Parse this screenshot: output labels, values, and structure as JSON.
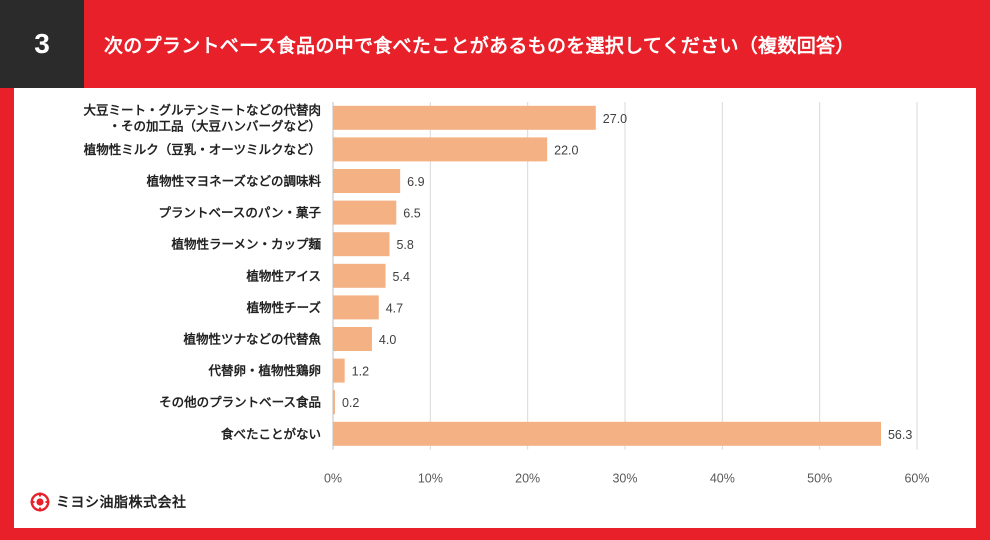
{
  "header": {
    "number": "3",
    "title": "次のプラントベース食品の中で食べたことがあるものを選択してください（複数回答）"
  },
  "colors": {
    "accent": "#e8202a",
    "dark": "#2b2b2b",
    "bar": "#f4b183"
  },
  "logo": {
    "text": "ミヨシ油脂株式会社",
    "icon": "miyoshi-logo-icon"
  },
  "chart_data": {
    "type": "bar",
    "orientation": "horizontal",
    "categories": [
      [
        "大豆ミート・グルテンミートなどの代替肉",
        "・その加工品（大豆ハンバーグなど）"
      ],
      [
        "植物性ミルク（豆乳・オーツミルクなど）"
      ],
      [
        "植物性マヨネーズなどの調味料"
      ],
      [
        "プラントベースのパン・菓子"
      ],
      [
        "植物性ラーメン・カップ麺"
      ],
      [
        "植物性アイス"
      ],
      [
        "植物性チーズ"
      ],
      [
        "植物性ツナなどの代替魚"
      ],
      [
        "代替卵・植物性鶏卵"
      ],
      [
        "その他のプラントベース食品"
      ],
      [
        "食べたことがない"
      ]
    ],
    "values": [
      27.0,
      22.0,
      6.9,
      6.5,
      5.8,
      5.4,
      4.7,
      4.0,
      1.2,
      0.2,
      56.3
    ],
    "value_labels": [
      "27.0",
      "22.0",
      "6.9",
      "6.5",
      "5.8",
      "5.4",
      "4.7",
      "4.0",
      "1.2",
      "0.2",
      "56.3"
    ],
    "xlim": [
      0,
      60
    ],
    "xticks": [
      0,
      10,
      20,
      30,
      40,
      50,
      60
    ],
    "xtick_labels": [
      "0%",
      "10%",
      "20%",
      "30%",
      "40%",
      "50%",
      "60%"
    ],
    "grid": "vertical",
    "legend": "none"
  }
}
